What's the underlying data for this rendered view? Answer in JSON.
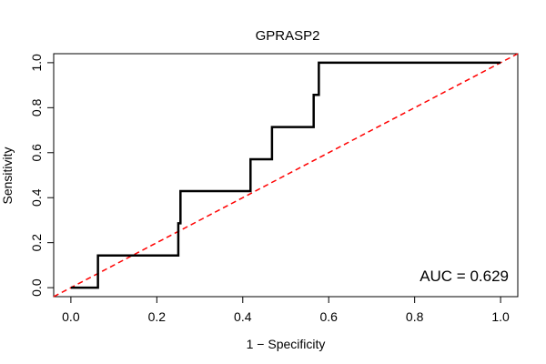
{
  "chart_data": {
    "type": "line",
    "title": "GPRASP2",
    "xlabel": "1 − Specificity",
    "ylabel": "Sensitivity",
    "xlim": [
      -0.04,
      1.04
    ],
    "ylim": [
      -0.04,
      1.04
    ],
    "x_ticks": [
      0.0,
      0.2,
      0.4,
      0.6,
      0.8,
      1.0
    ],
    "x_tick_labels": [
      "0.0",
      "0.2",
      "0.4",
      "0.6",
      "0.8",
      "1.0"
    ],
    "y_ticks": [
      0.0,
      0.2,
      0.4,
      0.6,
      0.8,
      1.0
    ],
    "y_tick_labels": [
      "0.0",
      "0.2",
      "0.4",
      "0.6",
      "0.8",
      "1.0"
    ],
    "grid": false,
    "series": [
      {
        "name": "ROC curve",
        "color": "#000000",
        "style": "solid",
        "x": [
          0.0,
          0.063,
          0.063,
          0.25,
          0.25,
          0.255,
          0.255,
          0.418,
          0.418,
          0.468,
          0.468,
          0.565,
          0.565,
          0.577,
          0.577,
          1.0
        ],
        "y": [
          0.0,
          0.0,
          0.143,
          0.143,
          0.286,
          0.286,
          0.429,
          0.429,
          0.571,
          0.571,
          0.714,
          0.714,
          0.857,
          0.857,
          1.0,
          1.0
        ]
      },
      {
        "name": "reference line",
        "color": "#ff0000",
        "style": "dashed",
        "x": [
          -0.04,
          1.04
        ],
        "y": [
          -0.04,
          1.04
        ]
      }
    ],
    "annotations": [
      {
        "text": "AUC = 0.629",
        "position": "bottom-right"
      }
    ]
  }
}
